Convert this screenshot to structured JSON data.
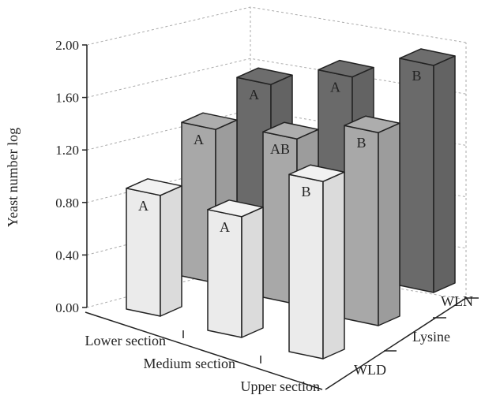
{
  "chart_data": {
    "type": "bar",
    "subtype": "3d-grouped-bar",
    "title": "",
    "ylabel": "Yeast number log",
    "ylim": [
      0,
      2.0
    ],
    "yticks": [
      "0.00",
      "0.40",
      "0.80",
      "1.20",
      "1.60",
      "2.00"
    ],
    "grid": true,
    "categories": [
      "Lower section",
      "Medium section",
      "Upper section"
    ],
    "series": [
      {
        "name": "WLD",
        "values": [
          0.92,
          0.92,
          1.35
        ],
        "letters": [
          "A",
          "A",
          "B"
        ],
        "color": "#ebebeb"
      },
      {
        "name": "Lysine",
        "values": [
          1.17,
          1.26,
          1.47
        ],
        "letters": [
          "A",
          "AB",
          "B"
        ],
        "color": "#a8a8a8"
      },
      {
        "name": "WLN",
        "values": [
          1.26,
          1.48,
          1.73
        ],
        "letters": [
          "A",
          "A",
          "B"
        ],
        "color": "#6a6a6a"
      }
    ]
  }
}
